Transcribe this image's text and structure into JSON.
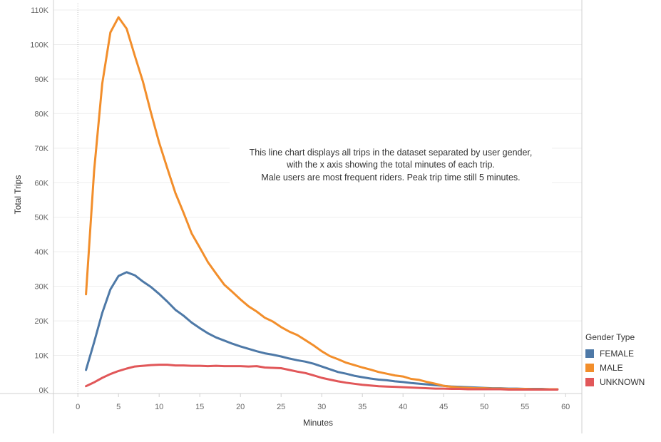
{
  "chart_data": {
    "type": "line",
    "title": "",
    "xlabel": "Minutes",
    "ylabel": "Total Trips",
    "xlim": [
      -3,
      62
    ],
    "ylim": [
      0,
      110000
    ],
    "x_ticks": [
      0,
      5,
      10,
      15,
      20,
      25,
      30,
      35,
      40,
      45,
      50,
      55,
      60
    ],
    "y_ticks": [
      {
        "value": 0,
        "label": "0K"
      },
      {
        "value": 10000,
        "label": "10K"
      },
      {
        "value": 20000,
        "label": "20K"
      },
      {
        "value": 30000,
        "label": "30K"
      },
      {
        "value": 40000,
        "label": "40K"
      },
      {
        "value": 50000,
        "label": "50K"
      },
      {
        "value": 60000,
        "label": "60K"
      },
      {
        "value": 70000,
        "label": "70K"
      },
      {
        "value": 80000,
        "label": "80K"
      },
      {
        "value": 90000,
        "label": "90K"
      },
      {
        "value": 100000,
        "label": "100K"
      },
      {
        "value": 110000,
        "label": "110K"
      }
    ],
    "grid": true,
    "legend": {
      "title": "Gender Type",
      "position": "right"
    },
    "annotation": [
      "This line chart displays all trips in the dataset separated by user gender,",
      "with the x axis showing the total minutes of each trip.",
      "Male users are most frequent riders.  Peak trip time still 5 minutes."
    ],
    "x": [
      1,
      2,
      3,
      4,
      5,
      6,
      7,
      8,
      9,
      10,
      11,
      12,
      13,
      14,
      15,
      16,
      17,
      18,
      19,
      20,
      21,
      22,
      23,
      24,
      25,
      26,
      27,
      28,
      29,
      30,
      31,
      32,
      33,
      34,
      35,
      36,
      37,
      38,
      39,
      40,
      41,
      42,
      43,
      44,
      45,
      46,
      47,
      48,
      49,
      50,
      51,
      52,
      53,
      54,
      55,
      56,
      57,
      58,
      59
    ],
    "series": [
      {
        "name": "FEMALE",
        "color": "#4e79a7",
        "values": [
          5800,
          13800,
          22300,
          29100,
          33000,
          34100,
          33200,
          31400,
          29800,
          27800,
          25600,
          23200,
          21500,
          19500,
          17900,
          16400,
          15200,
          14300,
          13400,
          12600,
          11900,
          11200,
          10600,
          10200,
          9700,
          9100,
          8600,
          8200,
          7600,
          6800,
          6000,
          5200,
          4700,
          4100,
          3700,
          3300,
          3000,
          2800,
          2500,
          2300,
          2000,
          1800,
          1600,
          1400,
          1200,
          1000,
          900,
          800,
          700,
          600,
          500,
          500,
          400,
          400,
          300,
          300,
          300,
          200,
          200
        ]
      },
      {
        "name": "MALE",
        "color": "#f28e2b",
        "values": [
          27700,
          63500,
          88700,
          103500,
          107900,
          104600,
          96800,
          89300,
          80200,
          71600,
          64200,
          57000,
          51300,
          45300,
          41200,
          37000,
          33700,
          30500,
          28400,
          26200,
          24200,
          22700,
          20900,
          19800,
          18200,
          16900,
          15900,
          14400,
          12900,
          11200,
          9800,
          8900,
          7900,
          7200,
          6500,
          5900,
          5200,
          4700,
          4200,
          3900,
          3200,
          2900,
          2300,
          1800,
          1200,
          900,
          700,
          600,
          500,
          500,
          400,
          400,
          300,
          300,
          300,
          200,
          200,
          200,
          200
        ]
      },
      {
        "name": "UNKNOWN",
        "color": "#e15759",
        "values": [
          1100,
          2200,
          3500,
          4600,
          5500,
          6200,
          6800,
          7000,
          7200,
          7300,
          7300,
          7100,
          7100,
          7000,
          7000,
          6900,
          7000,
          6900,
          6900,
          6900,
          6800,
          6900,
          6500,
          6400,
          6300,
          5800,
          5300,
          4900,
          4200,
          3500,
          3000,
          2500,
          2100,
          1800,
          1500,
          1300,
          1100,
          1000,
          900,
          800,
          700,
          600,
          500,
          400,
          400,
          300,
          300,
          200,
          200,
          200,
          200,
          200,
          100,
          100,
          100,
          100,
          100,
          100,
          100
        ]
      }
    ]
  }
}
